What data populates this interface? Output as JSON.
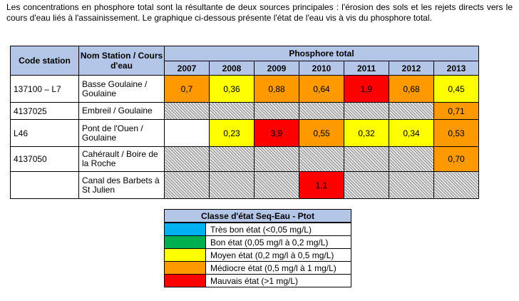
{
  "intro": "Les concentrations en phosphore total sont la résultante de deux sources principales : l'érosion des sols et les rejets directs vers le cours d'eau liés à l'assainissement. Le graphique ci-dessous présente l'état de l'eau vis à vis du phosphore total.",
  "table": {
    "col_code": "Code station",
    "col_name": "Nom Station / Cours d'eau",
    "col_group": "Phosphore total",
    "years": [
      "2007",
      "2008",
      "2009",
      "2010",
      "2011",
      "2012",
      "2013"
    ],
    "rows": [
      {
        "code": "137100 – L7",
        "name": "Basse Goulaine / Goulaine",
        "cells": [
          {
            "value": "0,7",
            "class": "orange"
          },
          {
            "value": "0,36",
            "class": "jaune"
          },
          {
            "value": "0,88",
            "class": "orange"
          },
          {
            "value": "0,64",
            "class": "orange"
          },
          {
            "value": "1,9",
            "class": "rouge"
          },
          {
            "value": "0,68",
            "class": "orange"
          },
          {
            "value": "0,45",
            "class": "jaune"
          }
        ]
      },
      {
        "code": "4137025",
        "name": "Embreil / Goulaine",
        "cells": [
          {
            "value": "",
            "class": "hatch"
          },
          {
            "value": "",
            "class": "hatch"
          },
          {
            "value": "",
            "class": "hatch"
          },
          {
            "value": "",
            "class": "hatch"
          },
          {
            "value": "",
            "class": "hatch"
          },
          {
            "value": "",
            "class": "hatch"
          },
          {
            "value": "0,71",
            "class": "orange"
          }
        ]
      },
      {
        "code": "L46",
        "name": "Pont de l'Ouen / Goulaine",
        "cells": [
          {
            "value": "",
            "class": "blanc"
          },
          {
            "value": "0,23",
            "class": "jaune"
          },
          {
            "value": "3,9",
            "class": "rouge"
          },
          {
            "value": "0,55",
            "class": "orange"
          },
          {
            "value": "0,32",
            "class": "jaune"
          },
          {
            "value": "0,34",
            "class": "jaune"
          },
          {
            "value": "0,53",
            "class": "orange"
          }
        ]
      },
      {
        "code": "4137050",
        "name": "Cahérault / Boire de la Roche",
        "cells": [
          {
            "value": "",
            "class": "hatch"
          },
          {
            "value": "",
            "class": "hatch"
          },
          {
            "value": "",
            "class": "hatch"
          },
          {
            "value": "",
            "class": "hatch"
          },
          {
            "value": "",
            "class": "hatch"
          },
          {
            "value": "",
            "class": "hatch"
          },
          {
            "value": "0,70",
            "class": "orange"
          }
        ]
      },
      {
        "code": "",
        "name": "Canal des Barbets à St Julien",
        "cells": [
          {
            "value": "",
            "class": "hatch"
          },
          {
            "value": "",
            "class": "hatch"
          },
          {
            "value": "",
            "class": "hatch"
          },
          {
            "value": "1,1",
            "class": "rouge"
          },
          {
            "value": "",
            "class": "hatch"
          },
          {
            "value": "",
            "class": "hatch"
          },
          {
            "value": "",
            "class": "hatch"
          }
        ]
      }
    ]
  },
  "legend": {
    "title": "Classe d'état Seq-Eau - Ptot",
    "items": [
      {
        "label": "Très bon état (<0,05 mg/L)",
        "color": "#00b0f0"
      },
      {
        "label": "Bon état (0,05 mg/l à 0,2 mg/L)",
        "color": "#00b050"
      },
      {
        "label": "Moyen état (0,2 mg/l à 0,5 mg/L)",
        "color": "#ffff00"
      },
      {
        "label": "Médiocre état (0,5 mg/l à 1 mg/L)",
        "color": "#ff9900"
      },
      {
        "label": "Mauvais état (>1 mg/L)",
        "color": "#ff0000"
      }
    ]
  }
}
